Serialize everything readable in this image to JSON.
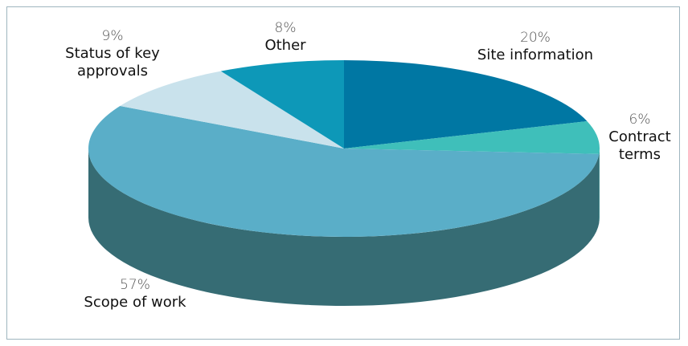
{
  "chart_data": {
    "type": "pie",
    "categories": [
      "Site information",
      "Contract terms",
      "Scope of work",
      "Status of key approvals",
      "Other"
    ],
    "values": [
      20,
      6,
      57,
      9,
      8
    ],
    "value_labels": [
      "20%",
      "6%",
      "57%",
      "9%",
      "8%"
    ],
    "colors": [
      "#0077a3",
      "#3fbfba",
      "#5aaec8",
      "#c9e2ec",
      "#0d98b8"
    ],
    "side_colors": [
      "#005a7c",
      "#2d8f8b",
      "#366c74",
      "#97b2bc",
      "#0a7189"
    ]
  }
}
